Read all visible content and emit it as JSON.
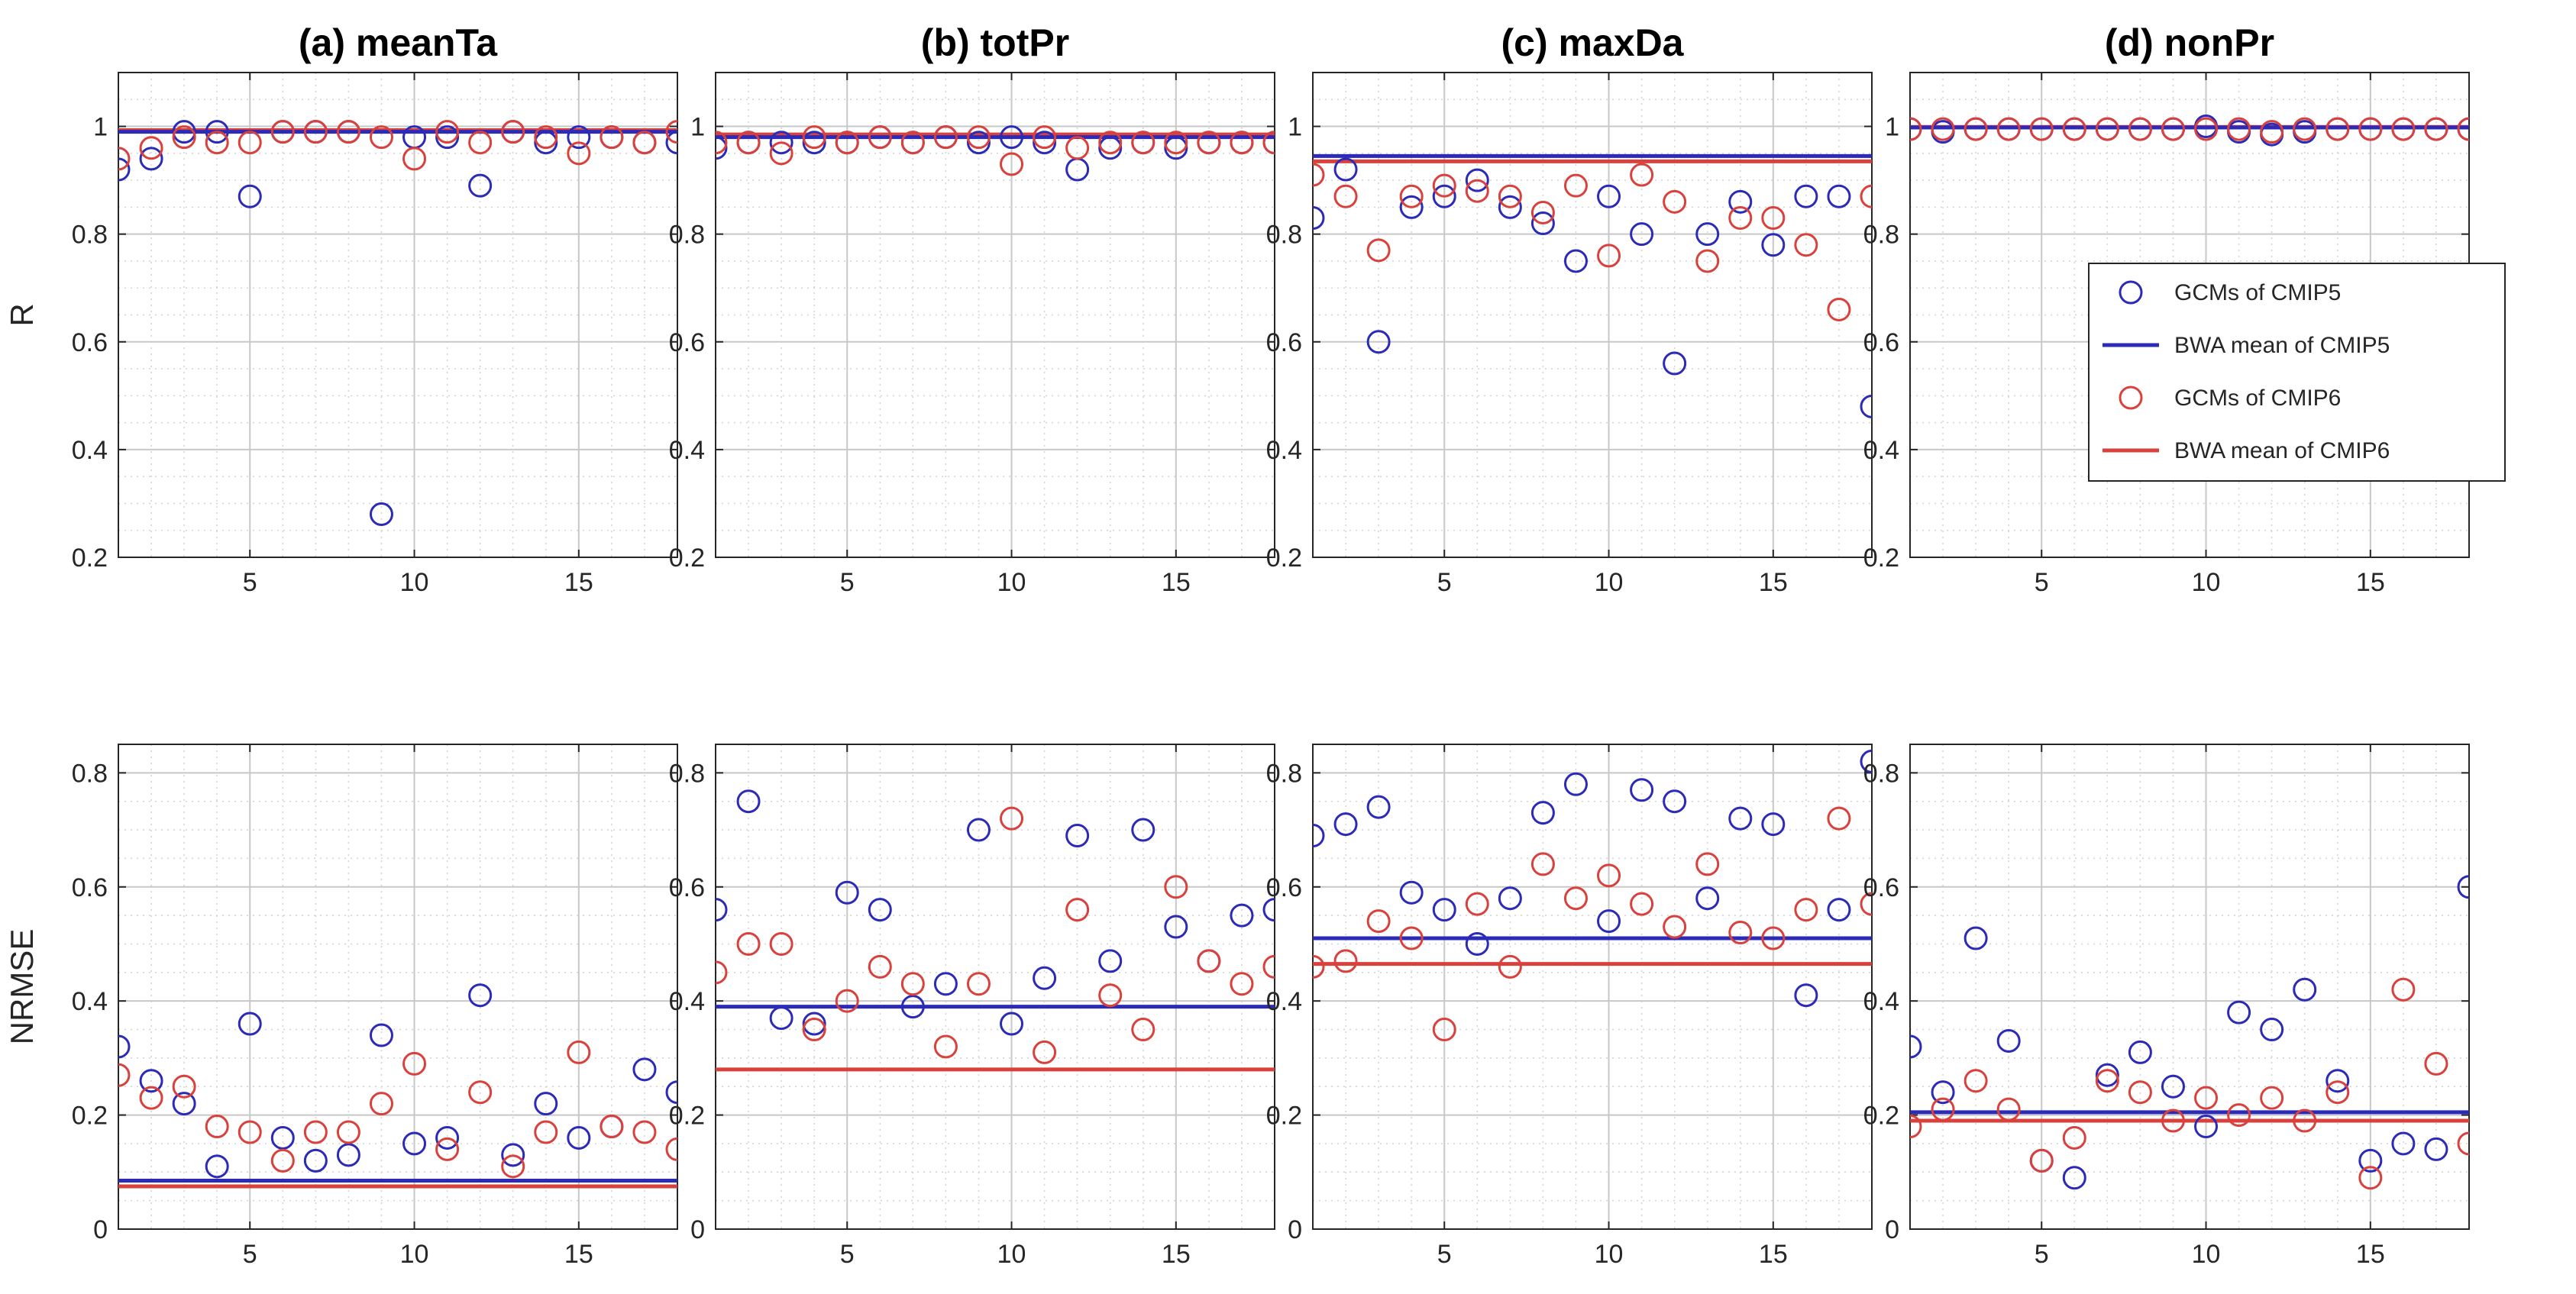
{
  "colors": {
    "cmip5": "#2b2bb8",
    "cmip6": "#d9413c",
    "grid_minor": "#d3d3d3",
    "grid_major": "#c8c8c8",
    "axis": "#262626"
  },
  "legend": {
    "entries": [
      {
        "label": "GCMs of CMIP5",
        "kind": "marker",
        "series": "cmip5"
      },
      {
        "label": "BWA mean of CMIP5",
        "kind": "line",
        "series": "cmip5"
      },
      {
        "label": "GCMs of CMIP6",
        "kind": "marker",
        "series": "cmip6"
      },
      {
        "label": "BWA mean of CMIP6",
        "kind": "line",
        "series": "cmip6"
      }
    ]
  },
  "chart_data": [
    {
      "type": "scatter",
      "title": "(a) meanTa",
      "ylabel": "R",
      "xlabel": "",
      "xlim": [
        1,
        18
      ],
      "ylim": [
        0.2,
        1.1
      ],
      "xticks": [
        5,
        10,
        15
      ],
      "yticks": [
        0.2,
        0.4,
        0.6,
        0.8,
        1
      ],
      "xtick_labels": [
        "5",
        "10",
        "15"
      ],
      "ytick_labels": [
        "0.2",
        "0.4",
        "0.6",
        "0.8",
        "1"
      ],
      "grid": true,
      "x": [
        1,
        2,
        3,
        4,
        5,
        6,
        7,
        8,
        9,
        10,
        11,
        12,
        13,
        14,
        15,
        16,
        17,
        18
      ],
      "series": [
        {
          "name": "GCMs of CMIP5",
          "key": "cmip5",
          "values": [
            0.92,
            0.94,
            0.99,
            0.99,
            0.87,
            0.99,
            0.99,
            0.99,
            0.28,
            0.98,
            0.98,
            0.89,
            0.99,
            0.97,
            0.98,
            0.98,
            0.97,
            0.97
          ]
        },
        {
          "name": "GCMs of CMIP6",
          "key": "cmip6",
          "values": [
            0.94,
            0.96,
            0.98,
            0.97,
            0.97,
            0.99,
            0.99,
            0.99,
            0.98,
            0.94,
            0.99,
            0.97,
            0.99,
            0.98,
            0.95,
            0.98,
            0.97,
            0.99
          ]
        }
      ],
      "means": [
        {
          "name": "BWA mean of CMIP5",
          "key": "cmip5",
          "value": 0.99
        },
        {
          "name": "BWA mean of CMIP6",
          "key": "cmip6",
          "value": 0.993
        }
      ]
    },
    {
      "type": "scatter",
      "title": "(b) totPr",
      "ylabel": "",
      "xlabel": "",
      "xlim": [
        1,
        18
      ],
      "ylim": [
        0.2,
        1.1
      ],
      "xticks": [
        5,
        10,
        15
      ],
      "yticks": [
        0.2,
        0.4,
        0.6,
        0.8,
        1
      ],
      "xtick_labels": [
        "5",
        "10",
        "15"
      ],
      "ytick_labels": [
        "0.2",
        "0.4",
        "0.6",
        "0.8",
        "1"
      ],
      "grid": true,
      "x": [
        1,
        2,
        3,
        4,
        5,
        6,
        7,
        8,
        9,
        10,
        11,
        12,
        13,
        14,
        15,
        16,
        17,
        18
      ],
      "series": [
        {
          "name": "GCMs of CMIP5",
          "key": "cmip5",
          "values": [
            0.96,
            0.97,
            0.97,
            0.97,
            0.97,
            0.98,
            0.97,
            0.98,
            0.97,
            0.98,
            0.97,
            0.92,
            0.96,
            0.97,
            0.96,
            0.97,
            0.97,
            0.97
          ]
        },
        {
          "name": "GCMs of CMIP6",
          "key": "cmip6",
          "values": [
            0.97,
            0.97,
            0.95,
            0.98,
            0.97,
            0.98,
            0.97,
            0.98,
            0.98,
            0.93,
            0.98,
            0.96,
            0.97,
            0.97,
            0.97,
            0.97,
            0.97,
            0.97
          ]
        }
      ],
      "means": [
        {
          "name": "BWA mean of CMIP5",
          "key": "cmip5",
          "value": 0.98
        },
        {
          "name": "BWA mean of CMIP6",
          "key": "cmip6",
          "value": 0.985
        }
      ]
    },
    {
      "type": "scatter",
      "title": "(c) maxDa",
      "ylabel": "",
      "xlabel": "",
      "xlim": [
        1,
        18
      ],
      "ylim": [
        0.2,
        1.1
      ],
      "xticks": [
        5,
        10,
        15
      ],
      "yticks": [
        0.2,
        0.4,
        0.6,
        0.8,
        1
      ],
      "xtick_labels": [
        "5",
        "10",
        "15"
      ],
      "ytick_labels": [
        "0.2",
        "0.4",
        "0.6",
        "0.8",
        "1"
      ],
      "grid": true,
      "x": [
        1,
        2,
        3,
        4,
        5,
        6,
        7,
        8,
        9,
        10,
        11,
        12,
        13,
        14,
        15,
        16,
        17,
        18
      ],
      "series": [
        {
          "name": "GCMs of CMIP5",
          "key": "cmip5",
          "values": [
            0.83,
            0.92,
            0.6,
            0.85,
            0.87,
            0.9,
            0.85,
            0.82,
            0.75,
            0.87,
            0.8,
            0.56,
            0.8,
            0.86,
            0.78,
            0.87,
            0.87,
            0.48
          ]
        },
        {
          "name": "GCMs of CMIP6",
          "key": "cmip6",
          "values": [
            0.91,
            0.87,
            0.77,
            0.87,
            0.89,
            0.88,
            0.87,
            0.84,
            0.89,
            0.76,
            0.91,
            0.86,
            0.75,
            0.83,
            0.83,
            0.78,
            0.66,
            0.87
          ]
        }
      ],
      "means": [
        {
          "name": "BWA mean of CMIP5",
          "key": "cmip5",
          "value": 0.945
        },
        {
          "name": "BWA mean of CMIP6",
          "key": "cmip6",
          "value": 0.935
        }
      ]
    },
    {
      "type": "scatter",
      "title": "(d) nonPr",
      "ylabel": "",
      "xlabel": "",
      "xlim": [
        1,
        18
      ],
      "ylim": [
        0.2,
        1.1
      ],
      "xticks": [
        5,
        10,
        15
      ],
      "yticks": [
        0.2,
        0.4,
        0.6,
        0.8,
        1
      ],
      "xtick_labels": [
        "5",
        "10",
        "15"
      ],
      "ytick_labels": [
        "0.2",
        "0.4",
        "0.6",
        "0.8",
        "1"
      ],
      "grid": true,
      "legend": "inside, middle",
      "x": [
        1,
        2,
        3,
        4,
        5,
        6,
        7,
        8,
        9,
        10,
        11,
        12,
        13,
        14,
        15,
        16,
        17,
        18
      ],
      "series": [
        {
          "name": "GCMs of CMIP5",
          "key": "cmip5",
          "values": [
            0.995,
            0.99,
            0.995,
            0.995,
            0.995,
            0.995,
            0.995,
            0.995,
            0.995,
            1.0,
            0.99,
            0.985,
            0.99,
            0.995,
            0.995,
            0.995,
            0.995,
            0.995
          ]
        },
        {
          "name": "GCMs of CMIP6",
          "key": "cmip6",
          "values": [
            0.995,
            0.995,
            0.995,
            0.995,
            0.995,
            0.995,
            0.995,
            0.995,
            0.995,
            0.995,
            0.995,
            0.99,
            0.995,
            0.995,
            0.995,
            0.995,
            0.995,
            0.995
          ]
        }
      ],
      "means": [
        {
          "name": "BWA mean of CMIP5",
          "key": "cmip5",
          "value": 0.998
        },
        {
          "name": "BWA mean of CMIP6",
          "key": "cmip6",
          "value": 0.999
        }
      ]
    },
    {
      "type": "scatter",
      "title": "",
      "ylabel": "NRMSE",
      "xlabel": "",
      "xlim": [
        1,
        18
      ],
      "ylim": [
        0,
        0.85
      ],
      "xticks": [
        5,
        10,
        15
      ],
      "yticks": [
        0,
        0.2,
        0.4,
        0.6,
        0.8
      ],
      "xtick_labels": [
        "5",
        "10",
        "15"
      ],
      "ytick_labels": [
        "0",
        "0.2",
        "0.4",
        "0.6",
        "0.8"
      ],
      "grid": true,
      "x": [
        1,
        2,
        3,
        4,
        5,
        6,
        7,
        8,
        9,
        10,
        11,
        12,
        13,
        14,
        15,
        16,
        17,
        18
      ],
      "series": [
        {
          "name": "GCMs of CMIP5",
          "key": "cmip5",
          "values": [
            0.32,
            0.26,
            0.22,
            0.11,
            0.36,
            0.16,
            0.12,
            0.13,
            0.34,
            0.15,
            0.16,
            0.41,
            0.13,
            0.22,
            0.16,
            0.18,
            0.28,
            0.24
          ]
        },
        {
          "name": "GCMs of CMIP6",
          "key": "cmip6",
          "values": [
            0.27,
            0.23,
            0.25,
            0.18,
            0.17,
            0.12,
            0.17,
            0.17,
            0.22,
            0.29,
            0.14,
            0.24,
            0.11,
            0.17,
            0.31,
            0.18,
            0.17,
            0.14
          ]
        }
      ],
      "means": [
        {
          "name": "BWA mean of CMIP5",
          "key": "cmip5",
          "value": 0.085
        },
        {
          "name": "BWA mean of CMIP6",
          "key": "cmip6",
          "value": 0.075
        }
      ]
    },
    {
      "type": "scatter",
      "title": "",
      "ylabel": "",
      "xlabel": "",
      "xlim": [
        1,
        18
      ],
      "ylim": [
        0,
        0.85
      ],
      "xticks": [
        5,
        10,
        15
      ],
      "yticks": [
        0,
        0.2,
        0.4,
        0.6,
        0.8
      ],
      "xtick_labels": [
        "5",
        "10",
        "15"
      ],
      "ytick_labels": [
        "0",
        "0.2",
        "0.4",
        "0.6",
        "0.8"
      ],
      "grid": true,
      "x": [
        1,
        2,
        3,
        4,
        5,
        6,
        7,
        8,
        9,
        10,
        11,
        12,
        13,
        14,
        15,
        16,
        17,
        18
      ],
      "series": [
        {
          "name": "GCMs of CMIP5",
          "key": "cmip5",
          "values": [
            0.56,
            0.75,
            0.37,
            0.36,
            0.59,
            0.56,
            0.39,
            0.43,
            0.7,
            0.36,
            0.44,
            0.69,
            0.47,
            0.7,
            0.53,
            0.47,
            0.55,
            0.56
          ]
        },
        {
          "name": "GCMs of CMIP6",
          "key": "cmip6",
          "values": [
            0.45,
            0.5,
            0.5,
            0.35,
            0.4,
            0.46,
            0.43,
            0.32,
            0.43,
            0.72,
            0.31,
            0.56,
            0.41,
            0.35,
            0.6,
            0.47,
            0.43,
            0.46
          ]
        }
      ],
      "means": [
        {
          "name": "BWA mean of CMIP5",
          "key": "cmip5",
          "value": 0.39
        },
        {
          "name": "BWA mean of CMIP6",
          "key": "cmip6",
          "value": 0.28
        }
      ]
    },
    {
      "type": "scatter",
      "title": "",
      "ylabel": "",
      "xlabel": "",
      "xlim": [
        1,
        18
      ],
      "ylim": [
        0,
        0.85
      ],
      "xticks": [
        5,
        10,
        15
      ],
      "yticks": [
        0,
        0.2,
        0.4,
        0.6,
        0.8
      ],
      "xtick_labels": [
        "5",
        "10",
        "15"
      ],
      "ytick_labels": [
        "0",
        "0.2",
        "0.4",
        "0.6",
        "0.8"
      ],
      "grid": true,
      "x": [
        1,
        2,
        3,
        4,
        5,
        6,
        7,
        8,
        9,
        10,
        11,
        12,
        13,
        14,
        15,
        16,
        17,
        18
      ],
      "series": [
        {
          "name": "GCMs of CMIP5",
          "key": "cmip5",
          "values": [
            0.69,
            0.71,
            0.74,
            0.59,
            0.56,
            0.5,
            0.58,
            0.73,
            0.78,
            0.54,
            0.77,
            0.75,
            0.58,
            0.72,
            0.71,
            0.41,
            0.56,
            0.82
          ]
        },
        {
          "name": "GCMs of CMIP6",
          "key": "cmip6",
          "values": [
            0.46,
            0.47,
            0.54,
            0.51,
            0.35,
            0.57,
            0.46,
            0.64,
            0.58,
            0.62,
            0.57,
            0.53,
            0.64,
            0.52,
            0.51,
            0.56,
            0.72,
            0.57
          ]
        }
      ],
      "means": [
        {
          "name": "BWA mean of CMIP5",
          "key": "cmip5",
          "value": 0.51
        },
        {
          "name": "BWA mean of CMIP6",
          "key": "cmip6",
          "value": 0.465
        }
      ]
    },
    {
      "type": "scatter",
      "title": "",
      "ylabel": "",
      "xlabel": "",
      "xlim": [
        1,
        18
      ],
      "ylim": [
        0,
        0.85
      ],
      "xticks": [
        5,
        10,
        15
      ],
      "yticks": [
        0,
        0.2,
        0.4,
        0.6,
        0.8
      ],
      "xtick_labels": [
        "5",
        "10",
        "15"
      ],
      "ytick_labels": [
        "0",
        "0.2",
        "0.4",
        "0.6",
        "0.8"
      ],
      "grid": true,
      "x": [
        1,
        2,
        3,
        4,
        5,
        6,
        7,
        8,
        9,
        10,
        11,
        12,
        13,
        14,
        15,
        16,
        17,
        18
      ],
      "series": [
        {
          "name": "GCMs of CMIP5",
          "key": "cmip5",
          "values": [
            0.32,
            0.24,
            0.51,
            0.33,
            0.12,
            0.09,
            0.27,
            0.31,
            0.25,
            0.18,
            0.38,
            0.35,
            0.42,
            0.26,
            0.12,
            0.15,
            0.14,
            0.6
          ]
        },
        {
          "name": "GCMs of CMIP6",
          "key": "cmip6",
          "values": [
            0.18,
            0.21,
            0.26,
            0.21,
            0.12,
            0.16,
            0.26,
            0.24,
            0.19,
            0.23,
            0.2,
            0.23,
            0.19,
            0.24,
            0.09,
            0.42,
            0.29,
            0.15
          ]
        }
      ],
      "means": [
        {
          "name": "BWA mean of CMIP5",
          "key": "cmip5",
          "value": 0.205
        },
        {
          "name": "BWA mean of CMIP6",
          "key": "cmip6",
          "value": 0.19
        }
      ]
    }
  ]
}
